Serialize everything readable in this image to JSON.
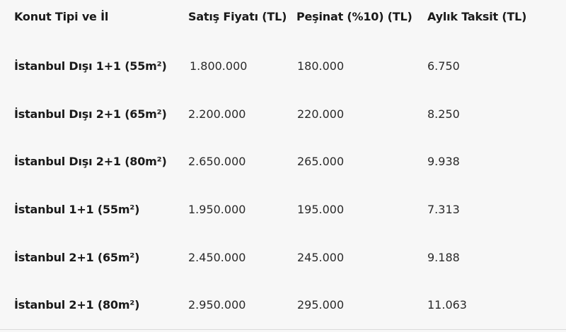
{
  "table": {
    "headers": [
      "Konut Tipi ve İl",
      "Satış Fiyatı (TL)",
      "Peşinat (%10) (TL)",
      "Aylık Taksit (TL)"
    ],
    "rows": [
      [
        "İstanbul Dışı 1+1 (55m²)",
        "1.800.000",
        "180.000",
        "6.750"
      ],
      [
        "İstanbul Dışı 2+1 (65m²)",
        "2.200.000",
        "220.000",
        "8.250"
      ],
      [
        "İstanbul Dışı 2+1 (80m²)",
        "2.650.000",
        "265.000",
        "9.938"
      ],
      [
        "İstanbul 1+1 (55m²)",
        "1.950.000",
        "195.000",
        "7.313"
      ],
      [
        "İstanbul 2+1 (65m²)",
        "2.450.000",
        "245.000",
        "9.188"
      ],
      [
        "İstanbul 2+1 (80m²)",
        "2.950.000",
        "295.000",
        "11.063"
      ]
    ]
  }
}
